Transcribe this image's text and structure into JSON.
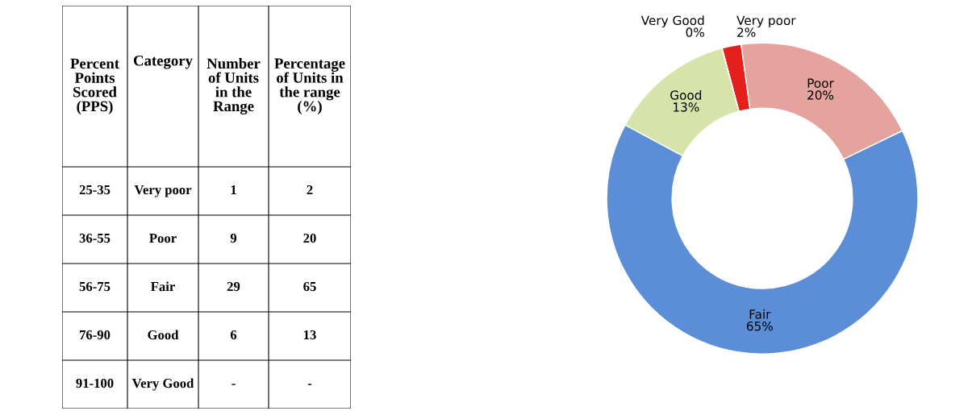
{
  "chart_data": [
    {
      "type": "other",
      "categories": [
        "Percent Points Scored (PPS)",
        "Category",
        "Number of Units in the Range",
        "Percentage of Units in the range (%)"
      ],
      "cell_labels": [
        [
          "25-35",
          "Very poor",
          "1",
          "2"
        ],
        [
          "36-55",
          "Poor",
          "9",
          "20"
        ],
        [
          "56-75",
          "Fair",
          "29",
          "65"
        ],
        [
          "76-90",
          "Good",
          "6",
          "13"
        ],
        [
          "91-100",
          "Very Good",
          "-",
          "-"
        ]
      ]
    },
    {
      "type": "donut",
      "categories": [
        "Very poor",
        "Poor",
        "Fair",
        "Good",
        "Very Good"
      ],
      "values": [
        2,
        20,
        65,
        13,
        0
      ],
      "colors": [
        "#e3201c",
        "#e5a39e",
        "#5b8ed6",
        "#d7e4a9",
        "#c4dca0"
      ],
      "value_labels": [
        "2%",
        "20%",
        "65%",
        "13%",
        "0%"
      ]
    }
  ]
}
